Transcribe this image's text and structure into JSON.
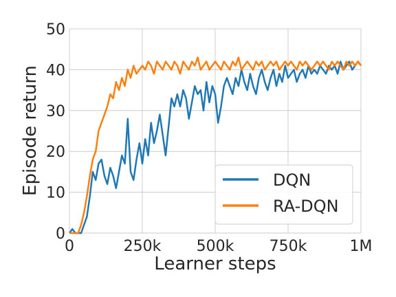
{
  "chart_data": {
    "type": "line",
    "xlabel": "Learner steps",
    "ylabel": "Episode return",
    "xlim": [
      0,
      1000000
    ],
    "ylim": [
      0,
      50
    ],
    "x_ticks": [
      {
        "value": 0,
        "label": "0"
      },
      {
        "value": 250000,
        "label": "250k"
      },
      {
        "value": 500000,
        "label": "500k"
      },
      {
        "value": 750000,
        "label": "750k"
      },
      {
        "value": 1000000,
        "label": "1M"
      }
    ],
    "y_ticks": [
      {
        "value": 0,
        "label": "0"
      },
      {
        "value": 10,
        "label": "10"
      },
      {
        "value": 20,
        "label": "20"
      },
      {
        "value": 30,
        "label": "30"
      },
      {
        "value": 40,
        "label": "40"
      },
      {
        "value": 50,
        "label": "50"
      }
    ],
    "grid": true,
    "legend_position": "bottom-right",
    "series": [
      {
        "name": "DQN",
        "color": "#1f77b4",
        "x": [
          0,
          10000,
          20000,
          30000,
          40000,
          50000,
          60000,
          70000,
          80000,
          90000,
          100000,
          110000,
          120000,
          130000,
          140000,
          150000,
          160000,
          170000,
          180000,
          190000,
          200000,
          210000,
          220000,
          230000,
          240000,
          250000,
          260000,
          270000,
          280000,
          290000,
          300000,
          310000,
          320000,
          330000,
          340000,
          350000,
          360000,
          370000,
          380000,
          390000,
          400000,
          410000,
          420000,
          430000,
          440000,
          450000,
          460000,
          470000,
          480000,
          490000,
          500000,
          510000,
          520000,
          530000,
          540000,
          550000,
          560000,
          570000,
          580000,
          590000,
          600000,
          610000,
          620000,
          630000,
          640000,
          650000,
          660000,
          670000,
          680000,
          690000,
          700000,
          710000,
          720000,
          730000,
          740000,
          750000,
          760000,
          770000,
          780000,
          790000,
          800000,
          810000,
          820000,
          830000,
          840000,
          850000,
          860000,
          870000,
          880000,
          890000,
          900000,
          910000,
          920000,
          930000,
          940000,
          950000,
          960000,
          970000,
          980000,
          990000,
          1000000
        ],
        "values": [
          0,
          1,
          0,
          0,
          0,
          2,
          4,
          9,
          15,
          13,
          17,
          18,
          14,
          12,
          16,
          14,
          11,
          15,
          19,
          17,
          28,
          15,
          13,
          18,
          22,
          17,
          23,
          19,
          27,
          22,
          25,
          29,
          24,
          19,
          26,
          33,
          31,
          34,
          31,
          35,
          33,
          28,
          32,
          36,
          34,
          35,
          30,
          37,
          32,
          36,
          34,
          27,
          31,
          36,
          38,
          36,
          34,
          38,
          36,
          40,
          37,
          35,
          39,
          36,
          34,
          38,
          40,
          37,
          35,
          38,
          40,
          36,
          39,
          37,
          41,
          38,
          39,
          40,
          37,
          39,
          40,
          38,
          41,
          39,
          40,
          39,
          41,
          40,
          39,
          41,
          40,
          41,
          39,
          42,
          40,
          41,
          42,
          40,
          41,
          42,
          41
        ]
      },
      {
        "name": "RA-DQN",
        "color": "#ff7f0e",
        "x": [
          0,
          10000,
          20000,
          30000,
          40000,
          50000,
          60000,
          70000,
          80000,
          90000,
          100000,
          110000,
          120000,
          130000,
          140000,
          150000,
          160000,
          170000,
          180000,
          190000,
          200000,
          210000,
          220000,
          230000,
          240000,
          250000,
          260000,
          270000,
          280000,
          290000,
          300000,
          310000,
          320000,
          330000,
          340000,
          350000,
          360000,
          370000,
          380000,
          390000,
          400000,
          410000,
          420000,
          430000,
          440000,
          450000,
          460000,
          470000,
          480000,
          490000,
          500000,
          510000,
          520000,
          530000,
          540000,
          550000,
          560000,
          570000,
          580000,
          590000,
          600000,
          610000,
          620000,
          630000,
          640000,
          650000,
          660000,
          670000,
          680000,
          690000,
          700000,
          710000,
          720000,
          730000,
          740000,
          750000,
          760000,
          770000,
          780000,
          790000,
          800000,
          810000,
          820000,
          830000,
          840000,
          850000,
          860000,
          870000,
          880000,
          890000,
          900000,
          910000,
          920000,
          930000,
          940000,
          950000,
          960000,
          970000,
          980000,
          990000,
          1000000
        ],
        "values": [
          0,
          0,
          0,
          0,
          2,
          5,
          9,
          14,
          18,
          20,
          25,
          27,
          29,
          31,
          34,
          33,
          37,
          35,
          38,
          36,
          40,
          38,
          41,
          39,
          40,
          41,
          40,
          42,
          41,
          39,
          42,
          41,
          40,
          42,
          41,
          40,
          42,
          41,
          39,
          42,
          41,
          40,
          42,
          41,
          43,
          40,
          41,
          42,
          40,
          41,
          42,
          41,
          40,
          42,
          41,
          40,
          42,
          41,
          43,
          40,
          41,
          42,
          41,
          40,
          42,
          41,
          42,
          40,
          41,
          42,
          41,
          42,
          40,
          41,
          42,
          41,
          42,
          41,
          40,
          42,
          41,
          42,
          41,
          40,
          41,
          42,
          41,
          42,
          41,
          40,
          42,
          41,
          42,
          41,
          40,
          42,
          41,
          42,
          41,
          42,
          41
        ]
      }
    ]
  }
}
